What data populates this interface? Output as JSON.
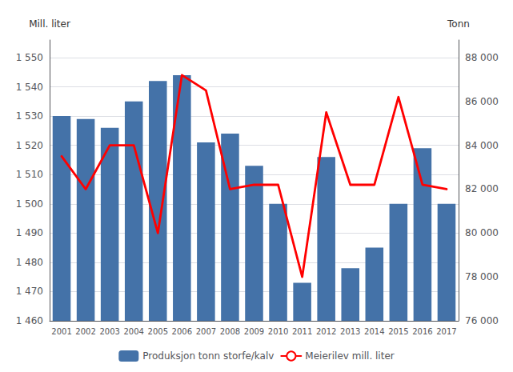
{
  "chart_data": {
    "type": "bar",
    "categories": [
      "2001",
      "2002",
      "2003",
      "2004",
      "2005",
      "2006",
      "2007",
      "2008",
      "2009",
      "2010",
      "2011",
      "2012",
      "2013",
      "2014",
      "2015",
      "2016",
      "2017"
    ],
    "series": [
      {
        "name": "Produksjon tonn storfe/kalv",
        "type": "bar",
        "color": "#4472a8",
        "values": [
          1530,
          1529,
          1526,
          1535,
          1542,
          1544,
          1521,
          1524,
          1513,
          1500,
          1473,
          1516,
          1478,
          1485,
          1500,
          1519,
          1500
        ]
      },
      {
        "name": "Meierilev mill. liter",
        "type": "line",
        "color": "#ff0000",
        "axis": "y2",
        "values": [
          83500,
          82000,
          84000,
          84000,
          80000,
          87200,
          86500,
          82000,
          82200,
          82200,
          78000,
          85500,
          82200,
          82200,
          86200,
          82200,
          82000
        ]
      }
    ],
    "ylabel": "Mill. liter",
    "y2label": "Tonn",
    "ylim": [
      1460,
      1556
    ],
    "yticks": [
      {
        "value": 1460,
        "label": "1 460"
      },
      {
        "value": 1470,
        "label": "1 470"
      },
      {
        "value": 1480,
        "label": "1 480"
      },
      {
        "value": 1490,
        "label": "1 490"
      },
      {
        "value": 1500,
        "label": "1 500"
      },
      {
        "value": 1510,
        "label": "1 510"
      },
      {
        "value": 1520,
        "label": "1 520"
      },
      {
        "value": 1530,
        "label": "1 530"
      },
      {
        "value": 1540,
        "label": "1 540"
      },
      {
        "value": 1550,
        "label": "1 550"
      }
    ],
    "y2lim": [
      76000,
      88800
    ],
    "y2ticks": [
      {
        "value": 76000,
        "label": "76 000"
      },
      {
        "value": 78000,
        "label": "78 000"
      },
      {
        "value": 80000,
        "label": "80 000"
      },
      {
        "value": 82000,
        "label": "82 000"
      },
      {
        "value": 84000,
        "label": "84 000"
      },
      {
        "value": 86000,
        "label": "86 000"
      },
      {
        "value": 88000,
        "label": "88 000"
      }
    ],
    "grid": true,
    "legend": "bottom"
  }
}
